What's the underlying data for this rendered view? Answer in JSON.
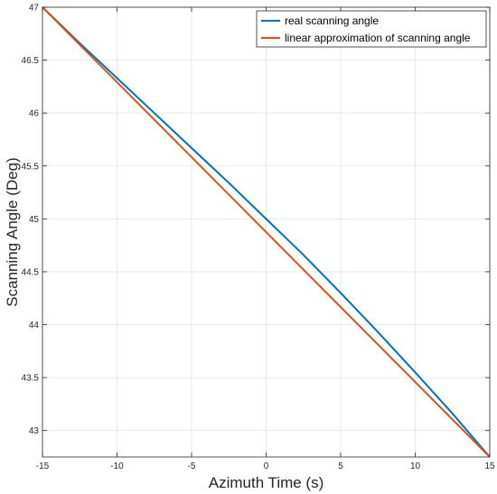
{
  "chart_data": {
    "type": "line",
    "xlabel": "Azimuth Time (s)",
    "ylabel": "Scanning Angle (Deg)",
    "xlim": [
      -15,
      15
    ],
    "ylim": [
      42.75,
      47
    ],
    "xticks": [
      -15,
      -10,
      -5,
      0,
      5,
      10,
      15
    ],
    "yticks": [
      43,
      43.5,
      44,
      44.5,
      45,
      45.5,
      46,
      46.5,
      47
    ],
    "grid": true,
    "legend_position": "top-right",
    "series": [
      {
        "name": "real scanning angle",
        "color": "#0072BD",
        "x": [
          -15,
          -12.5,
          -10,
          -7.5,
          -5,
          -2.5,
          0,
          2.5,
          5,
          7.5,
          10,
          12.5,
          15
        ],
        "y": [
          47,
          46.66,
          46.33,
          46.0,
          45.67,
          45.34,
          45.0,
          44.66,
          44.3,
          43.93,
          43.55,
          43.16,
          42.75
        ]
      },
      {
        "name": "linear approximation of scanning angle",
        "color": "#D95319",
        "x": [
          -15,
          15
        ],
        "y": [
          47,
          42.75
        ]
      }
    ]
  }
}
